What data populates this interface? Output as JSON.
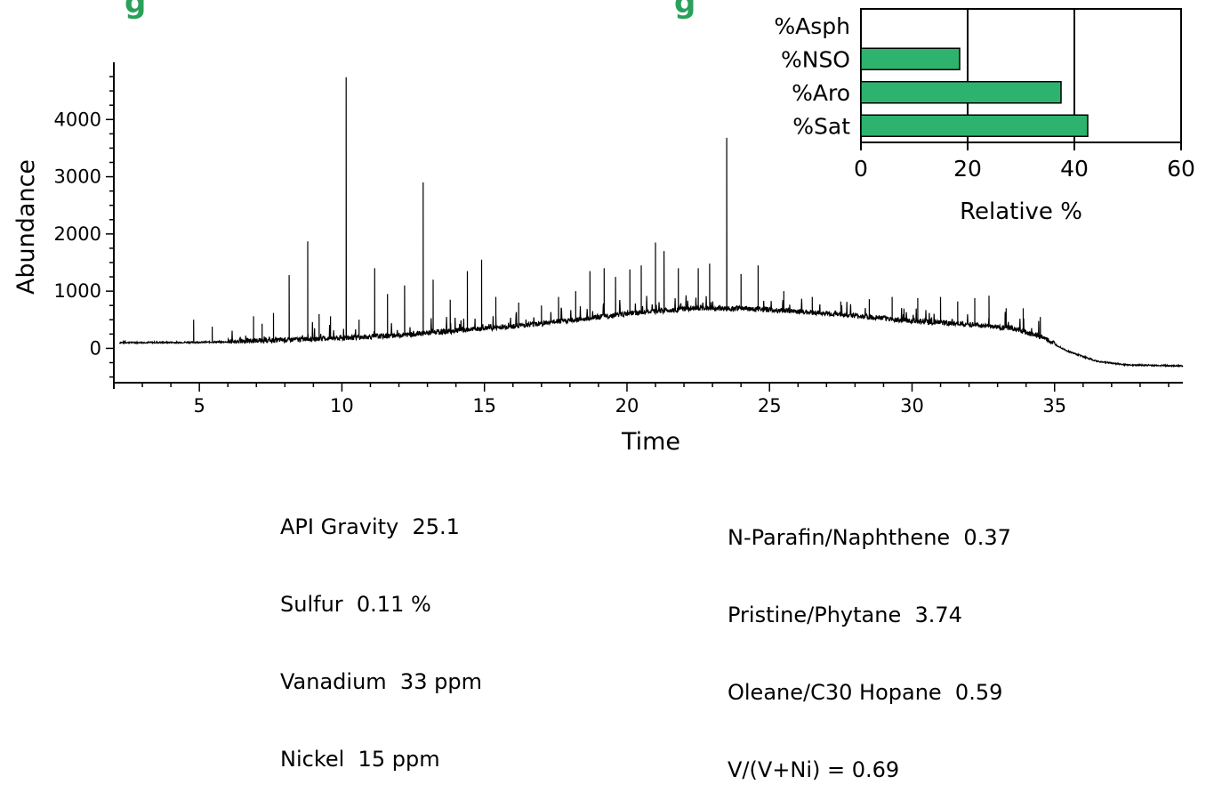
{
  "title_fragments": [
    "g",
    "g"
  ],
  "chart_data": [
    {
      "type": "line",
      "xlabel": "Time",
      "ylabel": "Abundance",
      "xlim": [
        2,
        39.5
      ],
      "ylim": [
        -600,
        5000
      ],
      "x_ticks": [
        5,
        10,
        15,
        20,
        25,
        30,
        35
      ],
      "y_ticks": [
        0,
        1000,
        2000,
        3000,
        4000
      ],
      "line_color": "#000000",
      "grid": false,
      "baseline": [
        [
          2.2,
          100
        ],
        [
          4,
          100
        ],
        [
          6,
          110
        ],
        [
          8,
          140
        ],
        [
          10,
          170
        ],
        [
          12,
          220
        ],
        [
          14,
          300
        ],
        [
          16,
          380
        ],
        [
          18,
          480
        ],
        [
          20,
          600
        ],
        [
          22,
          680
        ],
        [
          24,
          690
        ],
        [
          26,
          640
        ],
        [
          28,
          560
        ],
        [
          30,
          470
        ],
        [
          32,
          410
        ],
        [
          33.5,
          340
        ],
        [
          34.5,
          200
        ],
        [
          35.5,
          -60
        ],
        [
          36.5,
          -230
        ],
        [
          37.5,
          -290
        ],
        [
          39.5,
          -310
        ]
      ],
      "peaks": [
        [
          2.4,
          140
        ],
        [
          3.5,
          130
        ],
        [
          4.8,
          500
        ],
        [
          5.45,
          380
        ],
        [
          6.9,
          560
        ],
        [
          7.2,
          430
        ],
        [
          7.6,
          620
        ],
        [
          8.15,
          1280
        ],
        [
          8.8,
          1870
        ],
        [
          9.2,
          600
        ],
        [
          9.6,
          560
        ],
        [
          10.15,
          4740
        ],
        [
          10.6,
          500
        ],
        [
          11.15,
          1400
        ],
        [
          11.6,
          950
        ],
        [
          12.2,
          1100
        ],
        [
          12.85,
          2900
        ],
        [
          13.2,
          1200
        ],
        [
          13.8,
          850
        ],
        [
          14.4,
          1350
        ],
        [
          14.9,
          1550
        ],
        [
          15.4,
          900
        ],
        [
          16.2,
          800
        ],
        [
          17.0,
          750
        ],
        [
          17.6,
          900
        ],
        [
          18.2,
          1000
        ],
        [
          18.7,
          1350
        ],
        [
          19.2,
          1400
        ],
        [
          19.6,
          1250
        ],
        [
          20.1,
          1380
        ],
        [
          20.5,
          1450
        ],
        [
          21.0,
          1850
        ],
        [
          21.3,
          1700
        ],
        [
          21.8,
          1400
        ],
        [
          22.5,
          1400
        ],
        [
          22.9,
          1480
        ],
        [
          23.5,
          3680
        ],
        [
          24.0,
          1300
        ],
        [
          24.6,
          1450
        ],
        [
          25.5,
          1000
        ],
        [
          26.5,
          900
        ],
        [
          27.5,
          820
        ],
        [
          28.5,
          860
        ],
        [
          29.3,
          900
        ],
        [
          30.2,
          880
        ],
        [
          31.0,
          900
        ],
        [
          31.6,
          820
        ],
        [
          32.2,
          880
        ],
        [
          32.7,
          920
        ],
        [
          33.3,
          700
        ],
        [
          33.9,
          700
        ],
        [
          34.5,
          550
        ]
      ]
    },
    {
      "type": "bar",
      "orientation": "horizontal",
      "categories": [
        "%Asph",
        "%NSO",
        "%Aro",
        "%Sat"
      ],
      "values": [
        0,
        18.5,
        37.5,
        42.5
      ],
      "xlabel": "Relative %",
      "xlim": [
        0,
        60
      ],
      "x_ticks": [
        0,
        20,
        40,
        60
      ],
      "gridlines": [
        20,
        40
      ],
      "bar_color": "#2db36e"
    }
  ],
  "properties_left": [
    "API Gravity  25.1",
    "Sulfur  0.11 %",
    "Vanadium  33 ppm",
    "Nickel  15 ppm"
  ],
  "properties_right": [
    "N-Parafin/Naphthene  0.37",
    "Pristine/Phytane  3.74",
    "Oleane/C30 Hopane  0.59",
    "V/(V+Ni) = 0.69"
  ]
}
